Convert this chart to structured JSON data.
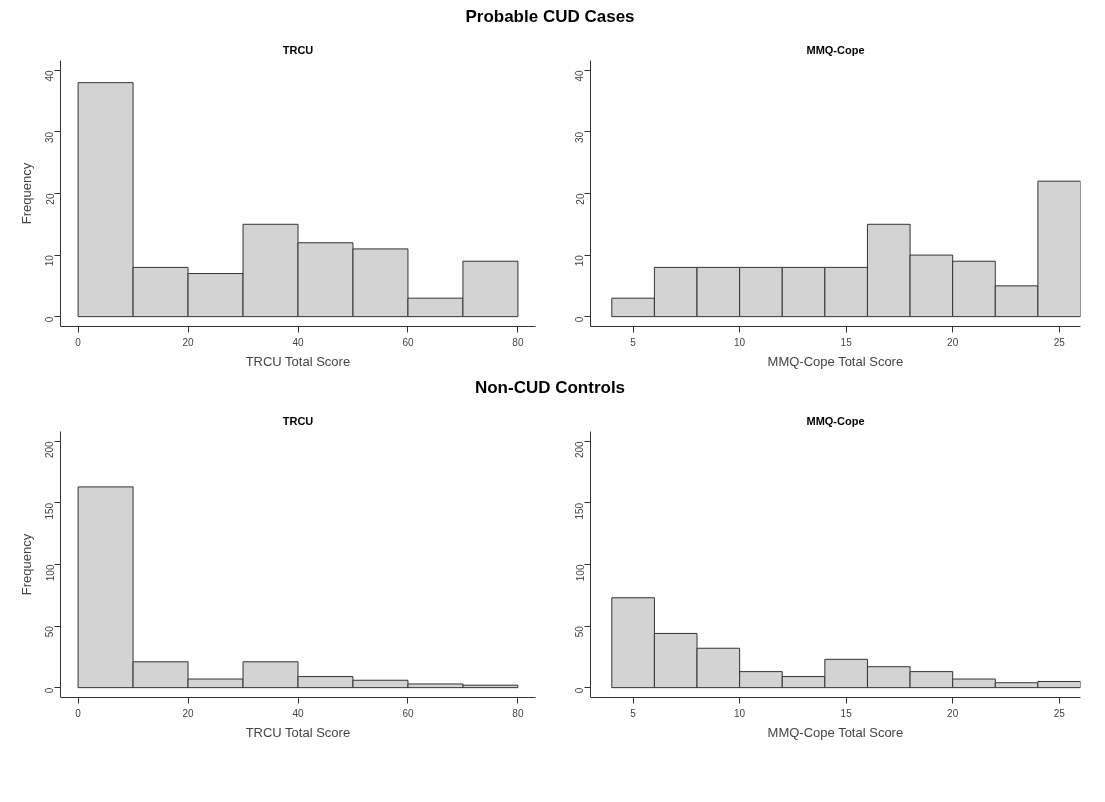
{
  "chart_data": [
    {
      "type": "histogram",
      "title": "TRCU",
      "annotations": [
        "Probable CUD Cases"
      ],
      "xlabel": "TRCU Total Score",
      "ylabel": "Frequency",
      "color": "#d3d3d3",
      "bins": [
        0,
        10,
        20,
        30,
        40,
        50,
        60,
        70,
        80
      ],
      "values": [
        38,
        8,
        7,
        15,
        12,
        11,
        3,
        9
      ],
      "xlim": [
        -3.2,
        83.2
      ],
      "xticks": [
        0,
        20,
        40,
        60,
        80
      ],
      "ylim": [
        -1.6,
        41.6
      ],
      "yticks": [
        0,
        10,
        20,
        30,
        40
      ],
      "grid": false
    },
    {
      "type": "histogram",
      "title": "MMQ-Cope",
      "xlabel": "MMQ-Cope Total Score",
      "color": "#d3d3d3",
      "bins": [
        4,
        6,
        8,
        10,
        12,
        14,
        16,
        18,
        20,
        22,
        24,
        26
      ],
      "values": [
        3,
        8,
        8,
        8,
        8,
        8,
        15,
        10,
        9,
        5,
        22
      ],
      "xlim": [
        3,
        26
      ],
      "xticks": [
        5,
        10,
        15,
        20,
        25
      ],
      "ylim": [
        -1.6,
        41.6
      ],
      "yticks": [
        0,
        10,
        20,
        30,
        40
      ],
      "grid": false
    },
    {
      "type": "histogram",
      "title": "TRCU",
      "annotations": [
        "Non-CUD Controls"
      ],
      "xlabel": "TRCU Total Score",
      "ylabel": "Frequency",
      "color": "#d3d3d3",
      "bins": [
        0,
        10,
        20,
        30,
        40,
        50,
        60,
        70,
        80
      ],
      "values": [
        163,
        21,
        7,
        21,
        9,
        6,
        3,
        2
      ],
      "xlim": [
        -3.2,
        83.2
      ],
      "xticks": [
        0,
        20,
        40,
        60,
        80
      ],
      "ylim": [
        -8,
        208
      ],
      "yticks": [
        0,
        50,
        100,
        150,
        200
      ],
      "grid": false
    },
    {
      "type": "histogram",
      "title": "MMQ-Cope",
      "xlabel": "MMQ-Cope Total Score",
      "color": "#d3d3d3",
      "bins": [
        4,
        6,
        8,
        10,
        12,
        14,
        16,
        18,
        20,
        22,
        24,
        26
      ],
      "values": [
        73,
        44,
        32,
        13,
        9,
        23,
        17,
        13,
        7,
        4,
        5
      ],
      "xlim": [
        3,
        26
      ],
      "xticks": [
        5,
        10,
        15,
        20,
        25
      ],
      "ylim": [
        -8,
        208
      ],
      "yticks": [
        0,
        50,
        100,
        150,
        200
      ],
      "grid": false
    }
  ]
}
